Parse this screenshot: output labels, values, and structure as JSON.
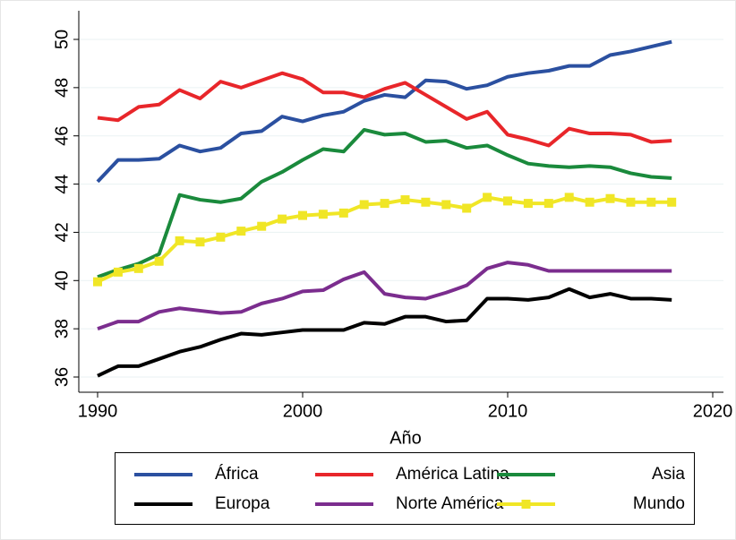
{
  "chart_data": {
    "type": "line",
    "x_label": "Año",
    "x": [
      1990,
      1991,
      1992,
      1993,
      1994,
      1995,
      1996,
      1997,
      1998,
      1999,
      2000,
      2001,
      2002,
      2003,
      2004,
      2005,
      2006,
      2007,
      2008,
      2009,
      2010,
      2011,
      2012,
      2013,
      2014,
      2015,
      2016,
      2017,
      2018
    ],
    "xlim": [
      1990,
      2020
    ],
    "xticks": [
      1990,
      2000,
      2010,
      2020
    ],
    "ylim": [
      36,
      50
    ],
    "yticks": [
      36,
      38,
      40,
      42,
      44,
      46,
      48,
      50
    ],
    "grid": true,
    "legend": "bottom",
    "series": [
      {
        "name": "África",
        "color": "#2b50a0",
        "values": [
          44.1,
          45.0,
          45.0,
          45.05,
          45.6,
          45.35,
          45.5,
          46.1,
          46.2,
          46.8,
          46.6,
          46.85,
          47.0,
          47.45,
          47.7,
          47.6,
          48.3,
          48.25,
          47.95,
          48.1,
          48.45,
          48.6,
          48.7,
          48.9,
          48.9,
          49.35,
          49.5,
          49.7,
          49.9
        ]
      },
      {
        "name": "América Latina",
        "color": "#e8262a",
        "values": [
          46.75,
          46.65,
          47.2,
          47.3,
          47.9,
          47.55,
          48.25,
          48.0,
          48.3,
          48.6,
          48.35,
          47.8,
          47.8,
          47.6,
          47.95,
          48.2,
          47.7,
          47.2,
          46.7,
          47.0,
          46.05,
          45.85,
          45.6,
          46.3,
          46.1,
          46.1,
          46.05,
          45.75,
          45.8
        ]
      },
      {
        "name": "Asia",
        "color": "#1a8a3c",
        "values": [
          40.15,
          40.45,
          40.7,
          41.1,
          43.55,
          43.35,
          43.25,
          43.4,
          44.1,
          44.5,
          45.0,
          45.45,
          45.35,
          46.25,
          46.05,
          46.1,
          45.75,
          45.8,
          45.5,
          45.6,
          45.2,
          44.85,
          44.75,
          44.7,
          44.75,
          44.7,
          44.45,
          44.3,
          44.25
        ]
      },
      {
        "name": "Europa",
        "color": "#000000",
        "values": [
          36.05,
          36.45,
          36.45,
          36.75,
          37.05,
          37.25,
          37.55,
          37.8,
          37.75,
          37.85,
          37.95,
          37.95,
          37.95,
          38.25,
          38.2,
          38.5,
          38.5,
          38.3,
          38.35,
          39.25,
          39.25,
          39.2,
          39.3,
          39.65,
          39.3,
          39.45,
          39.25,
          39.25,
          39.2
        ]
      },
      {
        "name": "Norte América",
        "color": "#7b2d8e",
        "values": [
          38.0,
          38.3,
          38.3,
          38.7,
          38.85,
          38.75,
          38.65,
          38.7,
          39.05,
          39.25,
          39.55,
          39.6,
          40.05,
          40.35,
          39.45,
          39.3,
          39.25,
          39.5,
          39.8,
          40.5,
          40.75,
          40.65,
          40.4,
          40.4,
          40.4,
          40.4,
          40.4,
          40.4,
          40.4
        ]
      },
      {
        "name": "Mundo",
        "color": "#f0e626",
        "marker": "square",
        "values": [
          39.95,
          40.35,
          40.5,
          40.8,
          41.65,
          41.6,
          41.8,
          42.05,
          42.25,
          42.55,
          42.7,
          42.75,
          42.8,
          43.15,
          43.2,
          43.35,
          43.25,
          43.15,
          43.0,
          43.45,
          43.3,
          43.2,
          43.2,
          43.45,
          43.25,
          43.4,
          43.25,
          43.25,
          43.25
        ]
      }
    ]
  }
}
